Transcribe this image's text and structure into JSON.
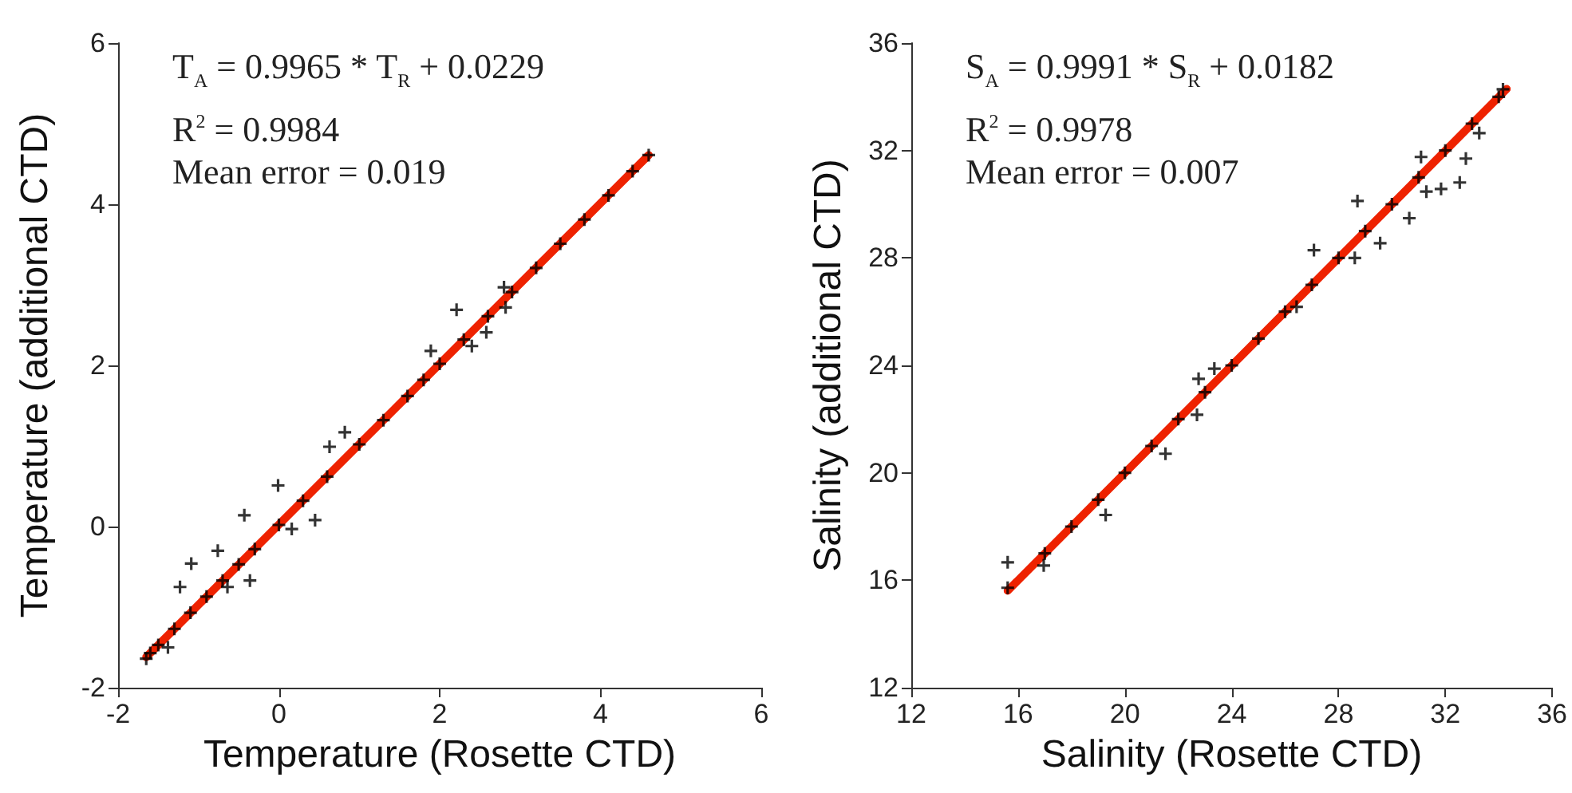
{
  "chart_data": [
    {
      "type": "scatter",
      "xlabel": "Temperature (Rosette CTD)",
      "ylabel": "Temperature (additional CTD)",
      "xlim": [
        -2,
        6
      ],
      "ylim": [
        -2,
        6
      ],
      "xticks": [
        -2,
        0,
        2,
        4,
        6
      ],
      "yticks": [
        -2,
        0,
        2,
        4,
        6
      ],
      "marker": "cross",
      "annotations": [
        "T$_{A}$ = 0.9965 * T$_{R}$ + 0.0229",
        "R$^{2}$ = 0.9984",
        "Mean error = 0.019"
      ],
      "series": [
        {
          "color": "#000000",
          "x": [
            -1.65,
            -1.6,
            -1.5,
            -1.38,
            -1.3,
            -1.23,
            -1.1,
            -1.09,
            -0.9,
            -0.76,
            -0.7,
            -0.64,
            -0.5,
            -0.43,
            -0.36,
            -0.3,
            -0.01,
            0,
            0.16,
            0.3,
            0.45,
            0.6,
            0.63,
            0.82,
            1.0,
            1.3,
            1.6,
            1.8,
            1.89,
            2.0,
            2.21,
            2.3,
            2.4,
            2.58,
            2.6,
            2.8,
            2.82,
            2.9,
            3.2,
            3.5,
            3.8,
            4.1,
            4.4,
            4.6
          ],
          "values": [
            -1.64,
            -1.57,
            -1.47,
            -1.5,
            -1.27,
            -0.75,
            -1.07,
            -0.46,
            -0.87,
            -0.3,
            -0.67,
            -0.75,
            -0.47,
            0.14,
            -0.67,
            -0.28,
            0.51,
            0.02,
            -0.03,
            0.32,
            0.08,
            0.62,
            0.99,
            1.17,
            1.02,
            1.32,
            1.62,
            1.82,
            2.18,
            2.02,
            2.69,
            2.32,
            2.24,
            2.41,
            2.61,
            2.97,
            2.72,
            2.91,
            3.21,
            3.51,
            3.81,
            4.11,
            4.41,
            4.61
          ]
        },
        {
          "type": "line",
          "color": "#ee2200",
          "marker": "none",
          "x": [
            -1.65,
            4.6
          ],
          "values": [
            -1.62,
            4.61
          ]
        }
      ]
    },
    {
      "type": "scatter",
      "xlabel": "Salinity (Rosette CTD)",
      "ylabel": "Salinity (additional CTD)",
      "xlim": [
        12,
        36
      ],
      "ylim": [
        12,
        36
      ],
      "xticks": [
        12,
        16,
        20,
        24,
        28,
        32,
        36
      ],
      "yticks": [
        12,
        16,
        20,
        24,
        28,
        32,
        36
      ],
      "marker": "cross",
      "annotations": [
        "S$_{A}$ = 0.9991 * S$_{R}$ + 0.0182",
        "R$^{2}$ = 0.9978",
        "Mean error = 0.007"
      ],
      "series": [
        {
          "color": "#000000",
          "x": [
            15.61,
            15.61,
            16.96,
            17,
            18,
            19,
            19.28,
            20,
            21,
            21.52,
            22,
            22.7,
            22.76,
            23,
            23.35,
            24,
            25,
            26,
            26.43,
            27,
            27.08,
            28,
            28.61,
            28.71,
            29,
            29.56,
            30,
            30.65,
            31,
            31.09,
            31.29,
            31.84,
            32,
            32.54,
            32.77,
            33,
            33.27,
            34,
            34.16
          ],
          "values": [
            15.72,
            16.67,
            16.55,
            17.0,
            18.0,
            19.0,
            18.43,
            20.0,
            21.0,
            20.71,
            22.0,
            22.16,
            23.5,
            23.0,
            23.88,
            24.0,
            25.0,
            26.0,
            26.18,
            27.0,
            28.29,
            28.0,
            28.0,
            30.12,
            29.0,
            28.55,
            30.0,
            29.48,
            31.0,
            31.76,
            30.47,
            30.57,
            32.0,
            30.81,
            31.7,
            33.0,
            32.65,
            34.0,
            34.28
          ]
        },
        {
          "type": "line",
          "color": "#ee2200",
          "marker": "none",
          "x": [
            15.61,
            34.3
          ],
          "values": [
            15.61,
            34.29
          ]
        }
      ]
    }
  ]
}
